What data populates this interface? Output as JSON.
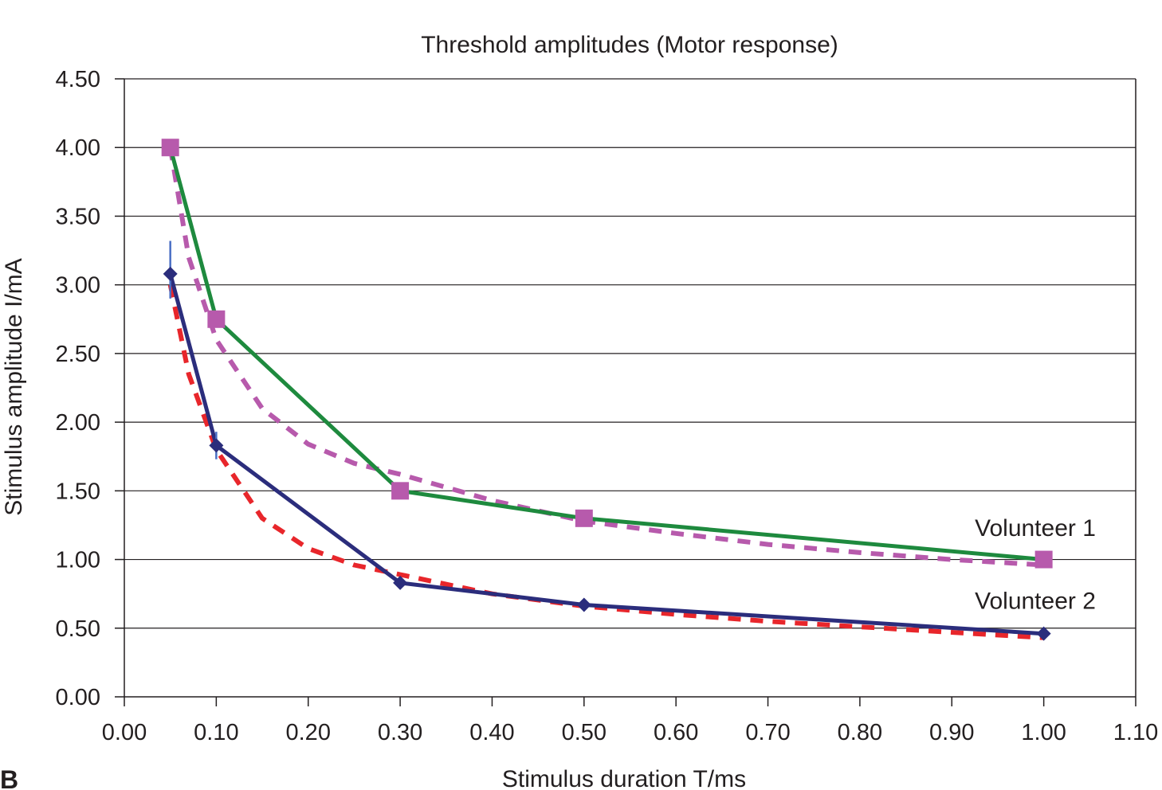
{
  "panel_label": "B",
  "chart_data": {
    "type": "line",
    "title": "Threshold amplitudes (Motor response)",
    "xlabel": "Stimulus duration T/ms",
    "ylabel": "Stimulus amplitude I/mA",
    "xlim": [
      0,
      1.1
    ],
    "ylim": [
      0,
      4.5
    ],
    "xticks": [
      "0.00",
      "0.10",
      "0.20",
      "0.30",
      "0.40",
      "0.50",
      "0.60",
      "0.70",
      "0.80",
      "0.90",
      "1.00",
      "1.10"
    ],
    "yticks": [
      "0.00",
      "0.50",
      "1.00",
      "1.50",
      "2.00",
      "2.50",
      "3.00",
      "3.50",
      "4.00",
      "4.50"
    ],
    "grid": "horizontal",
    "series": [
      {
        "name": "Volunteer 1",
        "style": "solid",
        "color": "#1e8a3e",
        "marker": "square",
        "marker_color": "#b75aac",
        "x": [
          0.05,
          0.1,
          0.3,
          0.5,
          1.0
        ],
        "values": [
          4.0,
          2.75,
          1.5,
          1.3,
          1.0
        ]
      },
      {
        "name": "Volunteer 2",
        "style": "solid",
        "color": "#2b2d7c",
        "marker": "diamond",
        "marker_color": "#2b2d7c",
        "x": [
          0.05,
          0.1,
          0.3,
          0.5,
          1.0
        ],
        "values": [
          3.08,
          1.83,
          0.83,
          0.67,
          0.46
        ],
        "error_bars": [
          {
            "x": 0.05,
            "low": 2.9,
            "high": 3.32
          },
          {
            "x": 0.1,
            "low": 1.73,
            "high": 1.93
          }
        ]
      },
      {
        "style": "dashed",
        "color": "#b75aac",
        "fit_of": "Volunteer 1",
        "x": [
          0.05,
          0.07,
          0.1,
          0.15,
          0.2,
          0.25,
          0.3,
          0.4,
          0.5,
          0.6,
          0.7,
          0.8,
          0.9,
          1.0
        ],
        "values": [
          4.0,
          3.2,
          2.6,
          2.1,
          1.84,
          1.7,
          1.62,
          1.43,
          1.28,
          1.19,
          1.11,
          1.05,
          1.0,
          0.96
        ]
      },
      {
        "style": "dashed",
        "color": "#e8262b",
        "fit_of": "Volunteer 2",
        "x": [
          0.05,
          0.07,
          0.1,
          0.15,
          0.2,
          0.25,
          0.3,
          0.4,
          0.5,
          0.6,
          0.7,
          0.8,
          0.9,
          1.0
        ],
        "values": [
          3.0,
          2.35,
          1.8,
          1.3,
          1.08,
          0.96,
          0.89,
          0.75,
          0.66,
          0.6,
          0.55,
          0.51,
          0.47,
          0.43
        ]
      }
    ],
    "annotations": [
      {
        "text": "Volunteer 1",
        "x": 0.925,
        "y": 1.17
      },
      {
        "text": "Volunteer 2",
        "x": 0.925,
        "y": 0.64
      }
    ]
  }
}
